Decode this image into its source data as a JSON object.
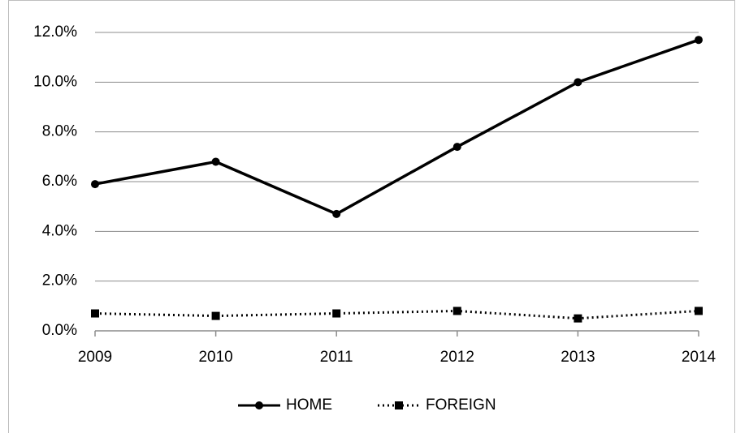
{
  "chart_data": {
    "type": "line",
    "x": [
      2009,
      2010,
      2011,
      2012,
      2013,
      2014
    ],
    "xlim": [
      2009,
      2014
    ],
    "xticks": [
      2009,
      2010,
      2011,
      2012,
      2013,
      2014
    ],
    "ylim": [
      0,
      12
    ],
    "yticks": [
      {
        "value": 0,
        "label": "0.0%"
      },
      {
        "value": 2,
        "label": "2.0%"
      },
      {
        "value": 4,
        "label": "4.0%"
      },
      {
        "value": 6,
        "label": "6.0%"
      },
      {
        "value": 8,
        "label": "8.0%"
      },
      {
        "value": 10,
        "label": "10.0%"
      },
      {
        "value": 12,
        "label": "12.0%"
      }
    ],
    "grid": true,
    "legend": "bottom",
    "series": [
      {
        "name": "HOME",
        "color": "#000000",
        "line_style": "solid",
        "marker": "circle",
        "values": [
          5.9,
          6.8,
          4.7,
          7.4,
          10.0,
          11.7
        ]
      },
      {
        "name": "FOREIGN",
        "color": "#000000",
        "line_style": "dotted",
        "marker": "square",
        "values": [
          0.7,
          0.6,
          0.7,
          0.8,
          0.5,
          0.8
        ]
      }
    ]
  }
}
